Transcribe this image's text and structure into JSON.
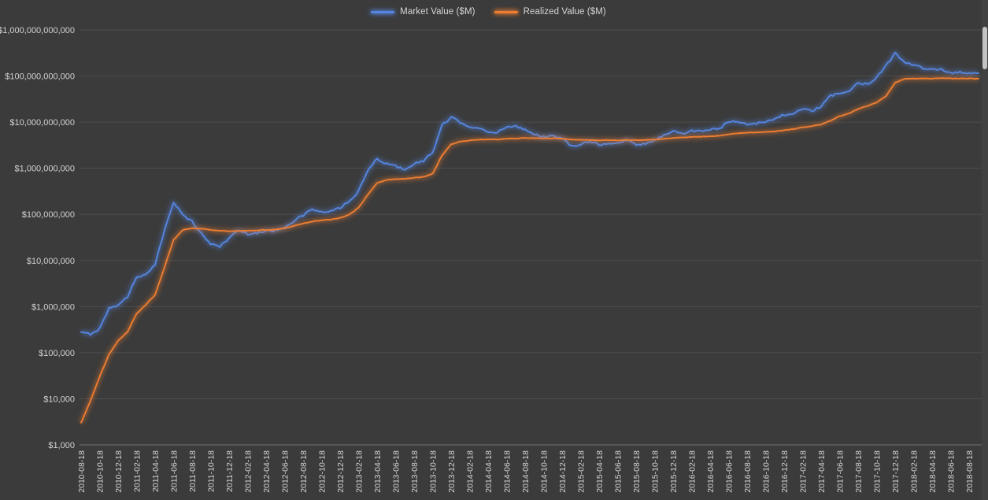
{
  "colors": {
    "background": "#3b3b3b",
    "gridline": "#4d4d4d",
    "axis_line": "#757575",
    "text": "#d2d2d2"
  },
  "legend": {
    "items": [
      {
        "label": "Market Value ($M)"
      },
      {
        "label": "Realized Value ($M)"
      }
    ]
  },
  "chart_data": {
    "type": "line",
    "y_scale": "log",
    "ylim": [
      1000,
      1000000000000
    ],
    "grid": "horizontal-only",
    "legend_position": "top-center",
    "y_tick_labels": [
      "$1,000",
      "$10,000",
      "$100,000",
      "$1,000,000",
      "$10,000,000",
      "$100,000,000",
      "$1,000,000,000",
      "$10,000,000,000",
      "$100,000,000,000",
      "$1,000,000,000,000"
    ],
    "x_tick_labels": [
      "2010-08-18",
      "2010-10-18",
      "2010-12-18",
      "2011-02-18",
      "2011-04-18",
      "2011-06-18",
      "2011-08-18",
      "2011-10-18",
      "2011-12-18",
      "2012-02-18",
      "2012-04-18",
      "2012-06-18",
      "2012-08-18",
      "2012-10-18",
      "2012-12-18",
      "2013-02-18",
      "2013-04-18",
      "2013-06-18",
      "2013-08-18",
      "2013-10-18",
      "2013-12-18",
      "2014-02-18",
      "2014-04-18",
      "2014-06-18",
      "2014-08-18",
      "2014-10-18",
      "2014-12-18",
      "2015-02-18",
      "2015-04-18",
      "2015-06-18",
      "2015-08-18",
      "2015-10-18",
      "2015-12-18",
      "2016-02-18",
      "2016-04-18",
      "2016-06-18",
      "2016-08-18",
      "2016-10-18",
      "2016-12-18",
      "2017-02-18",
      "2017-04-18",
      "2017-06-18",
      "2017-08-18",
      "2017-10-18",
      "2017-12-18",
      "2018-02-18",
      "2018-04-18",
      "2018-06-18",
      "2018-08-18"
    ],
    "x_points_note": "series values are monthly samples starting 2010-08-18, ticks fall on every second point",
    "series": [
      {
        "name": "Market Value ($M)",
        "color": "#5585e0",
        "values": [
          270000,
          255000,
          330000,
          900000,
          1100000,
          1600000,
          4500000,
          4800000,
          8000000,
          45000000,
          190000000,
          95000000,
          70000000,
          38000000,
          23000000,
          20000000,
          31000000,
          45000000,
          38000000,
          40000000,
          43000000,
          44000000,
          54000000,
          72000000,
          95000000,
          130000000,
          110000000,
          115000000,
          140000000,
          190000000,
          320000000,
          900000000,
          1600000000,
          1250000000,
          1100000000,
          950000000,
          1250000000,
          1450000000,
          2200000000,
          8500000000,
          12500000000,
          10000000000,
          8000000000,
          7500000000,
          5800000000,
          6000000000,
          8200000000,
          8000000000,
          7000000000,
          5500000000,
          4800000000,
          5000000000,
          4400000000,
          3000000000,
          3400000000,
          3900000000,
          3300000000,
          3300000000,
          3500000000,
          4100000000,
          3300000000,
          3400000000,
          4000000000,
          5300000000,
          6400000000,
          5600000000,
          6500000000,
          6400000000,
          6900000000,
          7100000000,
          10500000000,
          10200000000,
          9100000000,
          9600000000,
          10100000000,
          11900000000,
          14500000000,
          15500000000,
          19000000000,
          17500000000,
          22000000000,
          37000000000,
          43000000000,
          46000000000,
          72000000000,
          66000000000,
          96000000000,
          170000000000,
          310000000000,
          195000000000,
          175000000000,
          145000000000,
          135000000000,
          145000000000,
          112000000000,
          125000000000,
          112000000000,
          115000000000
        ]
      },
      {
        "name": "Realized Value ($M)",
        "color": "#ed7d31",
        "values": [
          3000,
          9000,
          30000,
          90000,
          180000,
          280000,
          700000,
          1100000,
          1800000,
          7000000,
          28000000,
          46000000,
          50000000,
          49000000,
          46000000,
          44000000,
          43000000,
          44000000,
          44000000,
          45000000,
          46000000,
          47000000,
          50000000,
          56000000,
          63000000,
          70000000,
          74000000,
          77000000,
          84000000,
          98000000,
          140000000,
          270000000,
          480000000,
          560000000,
          580000000,
          590000000,
          620000000,
          650000000,
          760000000,
          1900000000,
          3300000000,
          3800000000,
          4000000000,
          4150000000,
          4200000000,
          4200000000,
          4350000000,
          4450000000,
          4500000000,
          4500000000,
          4450000000,
          4450000000,
          4400000000,
          4200000000,
          4100000000,
          4100000000,
          4050000000,
          4050000000,
          4050000000,
          4100000000,
          4100000000,
          4100000000,
          4200000000,
          4350000000,
          4550000000,
          4650000000,
          4750000000,
          4850000000,
          4950000000,
          5050000000,
          5500000000,
          5750000000,
          5900000000,
          6000000000,
          6100000000,
          6300000000,
          6700000000,
          7100000000,
          7700000000,
          8200000000,
          8900000000,
          10800000000,
          13500000000,
          15500000000,
          19500000000,
          22500000000,
          27000000000,
          37000000000,
          72000000000,
          87000000000,
          88000000000,
          89000000000,
          88000000000,
          90000000000,
          89000000000,
          88000000000,
          88000000000,
          88500000000
        ]
      }
    ]
  }
}
